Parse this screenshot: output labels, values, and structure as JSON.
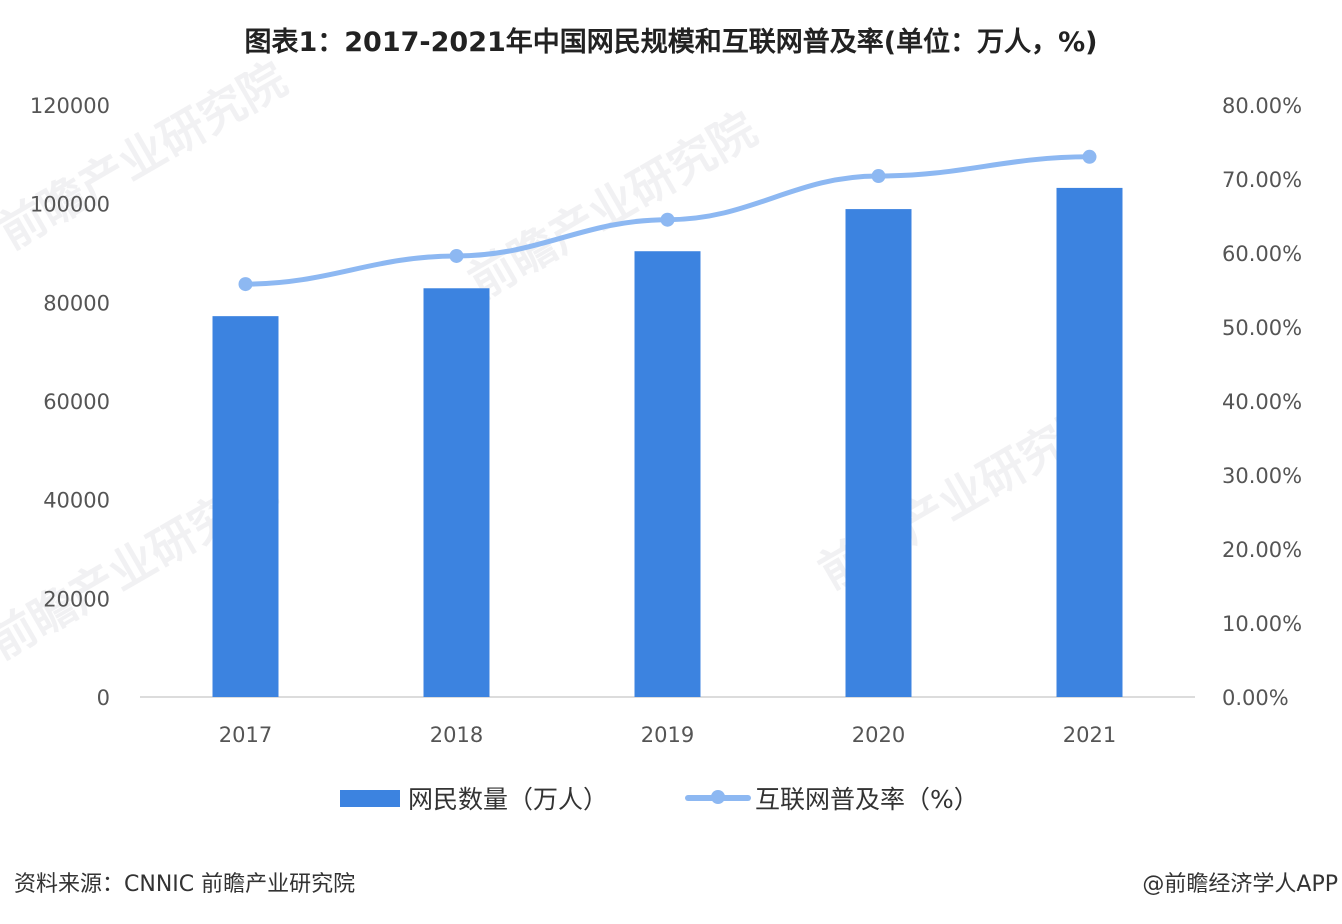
{
  "title": "图表1：2017-2021年中国网民规模和互联网普及率(单位：万人，%)",
  "chart_data": {
    "type": "bar+line",
    "title": "图表1：2017-2021年中国网民规模和互联网普及率(单位：万人，%)",
    "categories": [
      "2017",
      "2018",
      "2019",
      "2020",
      "2021"
    ],
    "series": [
      {
        "name": "网民数量（万人）",
        "type": "bar",
        "axis": "left",
        "values": [
          77198,
          82851,
          90359,
          98899,
          103195
        ],
        "color": "#3c83e0"
      },
      {
        "name": "互联网普及率（%）",
        "type": "line",
        "axis": "right",
        "values": [
          55.8,
          59.6,
          64.5,
          70.4,
          73.0
        ],
        "color": "#8db8f2"
      }
    ],
    "y_left": {
      "min": 0,
      "max": 120000,
      "ticks": [
        "0",
        "20000",
        "40000",
        "60000",
        "80000",
        "100000",
        "120000"
      ]
    },
    "y_right": {
      "min": 0,
      "max": 80,
      "ticks": [
        "0.00%",
        "10.00%",
        "20.00%",
        "30.00%",
        "40.00%",
        "50.00%",
        "60.00%",
        "70.00%",
        "80.00%"
      ]
    },
    "grid": false,
    "legend": "bottom"
  },
  "legend": {
    "bar_label": "网民数量（万人）",
    "line_label": "互联网普及率（%）"
  },
  "footer": {
    "source": "资料来源：CNNIC 前瞻产业研究院",
    "credit": "@前瞻经济学人APP"
  },
  "watermark": "前瞻产业研究院"
}
